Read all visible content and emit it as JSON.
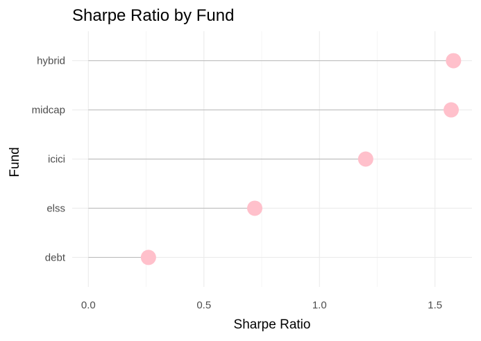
{
  "chart_data": {
    "type": "lollipop",
    "title": "Sharpe Ratio by Fund",
    "xlabel": "Sharpe Ratio",
    "ylabel": "Fund",
    "categories": [
      "debt",
      "elss",
      "icici",
      "midcap",
      "hybrid"
    ],
    "values": [
      0.26,
      0.72,
      1.2,
      1.57,
      1.58
    ],
    "xlim": [
      -0.07,
      1.66
    ],
    "xticks": [
      0.0,
      0.5,
      1.0,
      1.5
    ],
    "xtick_labels": [
      "0.0",
      "0.5",
      "1.0",
      "1.5"
    ],
    "grid": true,
    "legend": "none",
    "colors": {
      "point": "#ffc0cb",
      "stem": "#bebebe",
      "grid_major": "#ebebeb",
      "grid_minor": "#f5f5f5"
    }
  }
}
